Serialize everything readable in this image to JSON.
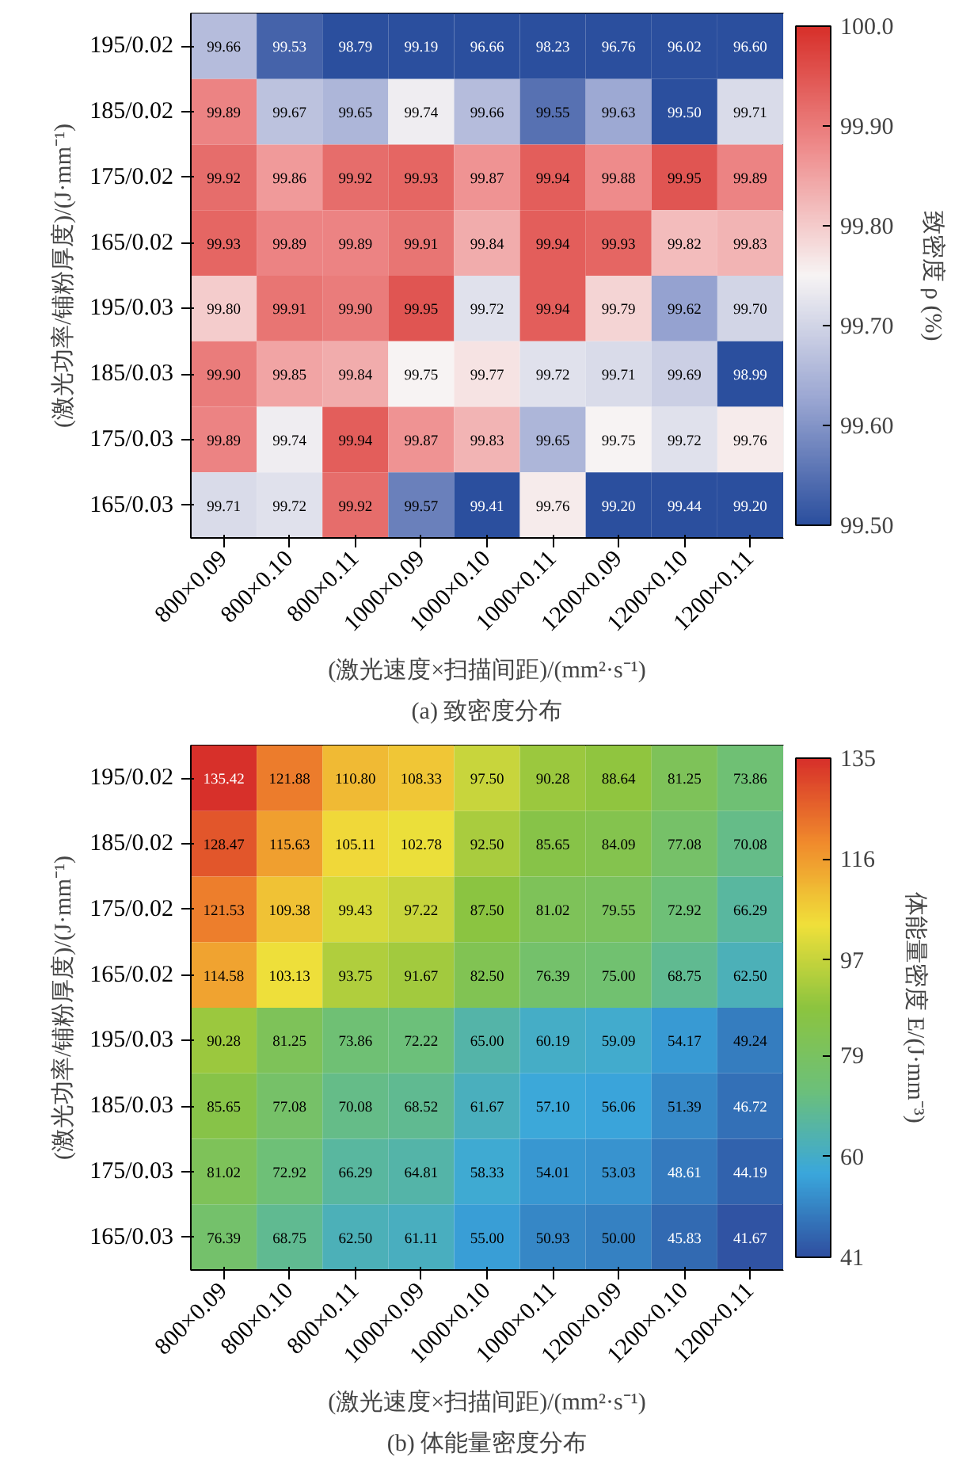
{
  "chart_data": [
    {
      "type": "heatmap",
      "title": "(a) 致密度分布",
      "xlabel": "(激光速度×扫描间距)/(mm²·s⁻¹)",
      "ylabel": "(激光功率/铺粉厚度)/(J·mm⁻¹)",
      "clabel": "致密度 ρ (%)",
      "categories": [
        "800×0.09",
        "800×0.10",
        "800×0.11",
        "1000×0.09",
        "1000×0.10",
        "1000×0.11",
        "1200×0.09",
        "1200×0.10",
        "1200×0.11"
      ],
      "y_categories": [
        "195/0.02",
        "185/0.02",
        "175/0.02",
        "165/0.02",
        "195/0.03",
        "185/0.03",
        "175/0.03",
        "165/0.03"
      ],
      "cells": [
        [
          99.66,
          99.53,
          98.79,
          99.19,
          96.66,
          98.23,
          96.76,
          96.02,
          96.6
        ],
        [
          99.89,
          99.67,
          99.65,
          99.74,
          99.66,
          99.55,
          99.63,
          99.5,
          99.71
        ],
        [
          99.92,
          99.86,
          99.92,
          99.93,
          99.87,
          99.94,
          99.88,
          99.95,
          99.89
        ],
        [
          99.93,
          99.89,
          99.89,
          99.91,
          99.84,
          99.94,
          99.93,
          99.82,
          99.83
        ],
        [
          99.8,
          99.91,
          99.9,
          99.95,
          99.72,
          99.94,
          99.79,
          99.62,
          99.7
        ],
        [
          99.9,
          99.85,
          99.84,
          99.75,
          99.77,
          99.72,
          99.71,
          99.69,
          98.99
        ],
        [
          99.89,
          99.74,
          99.94,
          99.87,
          99.83,
          99.65,
          99.75,
          99.72,
          99.76
        ],
        [
          99.71,
          99.72,
          99.92,
          99.57,
          99.41,
          99.76,
          99.2,
          99.44,
          99.2
        ]
      ],
      "cell_labels": [
        [
          "99.66",
          "99.53",
          "98.79",
          "99.19",
          "96.66",
          "98.23",
          "96.76",
          "96.02",
          "96.60"
        ],
        [
          "99.89",
          "99.67",
          "99.65",
          "99.74",
          "99.66",
          "99.55",
          "99.63",
          "99.50",
          "99.71"
        ],
        [
          "99.92",
          "99.86",
          "99.92",
          "99.93",
          "99.87",
          "99.94",
          "99.88",
          "99.95",
          "99.89"
        ],
        [
          "99.93",
          "99.89",
          "99.89",
          "99.91",
          "99.84",
          "99.94",
          "99.93",
          "99.82",
          "99.83"
        ],
        [
          "99.80",
          "99.91",
          "99.90",
          "99.95",
          "99.72",
          "99.94",
          "99.79",
          "99.62",
          "99.70"
        ],
        [
          "99.90",
          "99.85",
          "99.84",
          "99.75",
          "99.77",
          "99.72",
          "99.71",
          "99.69",
          "98.99"
        ],
        [
          "99.89",
          "99.74",
          "99.94",
          "99.87",
          "99.83",
          "99.65",
          "99.75",
          "99.72",
          "99.76"
        ],
        [
          "99.71",
          "99.72",
          "99.92",
          "99.57",
          "99.41",
          "99.76",
          "99.20",
          "99.44",
          "99.20"
        ]
      ],
      "data_labels": true,
      "clim": [
        99.5,
        100.0
      ],
      "cticks": [
        {
          "value": 99.5,
          "label": "99.50"
        },
        {
          "value": 99.6,
          "label": "99.60"
        },
        {
          "value": 99.7,
          "label": "99.70"
        },
        {
          "value": 99.8,
          "label": "99.80"
        },
        {
          "value": 99.9,
          "label": "99.90"
        },
        {
          "value": 100.0,
          "label": "100.0"
        }
      ]
    },
    {
      "type": "heatmap",
      "title": "(b) 体能量密度分布",
      "xlabel": "(激光速度×扫描间距)/(mm²·s⁻¹)",
      "ylabel": "(激光功率/铺粉厚度)/(J·mm⁻¹)",
      "clabel": "体能量密度 E/(J·mm⁻³)",
      "categories": [
        "800×0.09",
        "800×0.10",
        "800×0.11",
        "1000×0.09",
        "1000×0.10",
        "1000×0.11",
        "1200×0.09",
        "1200×0.10",
        "1200×0.11"
      ],
      "y_categories": [
        "195/0.02",
        "185/0.02",
        "175/0.02",
        "165/0.02",
        "195/0.03",
        "185/0.03",
        "175/0.03",
        "165/0.03"
      ],
      "cells": [
        [
          135.42,
          121.88,
          110.8,
          108.33,
          97.5,
          90.28,
          88.64,
          81.25,
          73.86
        ],
        [
          128.47,
          115.63,
          105.11,
          102.78,
          92.5,
          85.65,
          84.09,
          77.08,
          70.08
        ],
        [
          121.53,
          109.38,
          99.43,
          97.22,
          87.5,
          81.02,
          79.55,
          72.92,
          66.29
        ],
        [
          114.58,
          103.13,
          93.75,
          91.67,
          82.5,
          76.39,
          75.0,
          68.75,
          62.5
        ],
        [
          90.28,
          81.25,
          73.86,
          72.22,
          65.0,
          60.19,
          59.09,
          54.17,
          49.24
        ],
        [
          85.65,
          77.08,
          70.08,
          68.52,
          61.67,
          57.1,
          56.06,
          51.39,
          46.72
        ],
        [
          81.02,
          72.92,
          66.29,
          64.81,
          58.33,
          54.01,
          53.03,
          48.61,
          44.19
        ],
        [
          76.39,
          68.75,
          62.5,
          61.11,
          55.0,
          50.93,
          50.0,
          45.83,
          41.67
        ]
      ],
      "cell_labels": [
        [
          "135.42",
          "121.88",
          "110.80",
          "108.33",
          "97.50",
          "90.28",
          "88.64",
          "81.25",
          "73.86"
        ],
        [
          "128.47",
          "115.63",
          "105.11",
          "102.78",
          "92.50",
          "85.65",
          "84.09",
          "77.08",
          "70.08"
        ],
        [
          "121.53",
          "109.38",
          "99.43",
          "97.22",
          "87.50",
          "81.02",
          "79.55",
          "72.92",
          "66.29"
        ],
        [
          "114.58",
          "103.13",
          "93.75",
          "91.67",
          "82.50",
          "76.39",
          "75.00",
          "68.75",
          "62.50"
        ],
        [
          "90.28",
          "81.25",
          "73.86",
          "72.22",
          "65.00",
          "60.19",
          "59.09",
          "54.17",
          "49.24"
        ],
        [
          "85.65",
          "77.08",
          "70.08",
          "68.52",
          "61.67",
          "57.10",
          "56.06",
          "51.39",
          "46.72"
        ],
        [
          "81.02",
          "72.92",
          "66.29",
          "64.81",
          "58.33",
          "54.01",
          "53.03",
          "48.61",
          "44.19"
        ],
        [
          "76.39",
          "68.75",
          "62.50",
          "61.11",
          "55.00",
          "50.93",
          "50.00",
          "45.83",
          "41.67"
        ]
      ],
      "data_labels": true,
      "clim": [
        41,
        135
      ],
      "cticks": [
        41,
        60,
        79,
        97,
        116,
        135
      ]
    }
  ]
}
